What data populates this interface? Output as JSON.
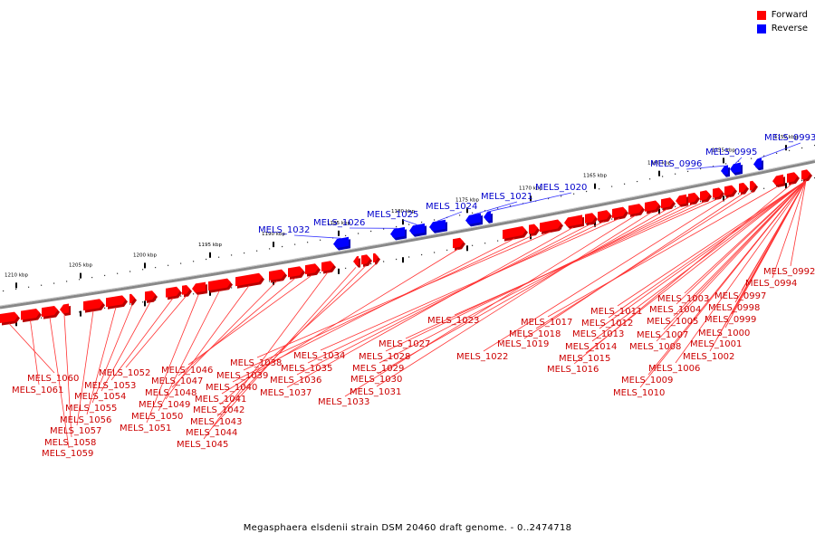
{
  "legend": {
    "items": [
      {
        "label": "Forward",
        "color": "#ff0000"
      },
      {
        "label": "Reverse",
        "color": "#0000ff"
      }
    ]
  },
  "caption": "Megasphaera elsdenii strain DSM 20460 draft genome. - 0..2474718",
  "ruler": {
    "ticks": [
      "1210 kbp",
      "1205 kbp",
      "1200 kbp",
      "1195 kbp",
      "1190 kbp",
      "1185 kbp",
      "1180 kbp",
      "1175 kbp",
      "1170 kbp",
      "1165 kbp",
      "1160 kbp",
      "1155 kbp",
      "1150 kbp"
    ]
  },
  "colors": {
    "forward": "#ff0000",
    "reverse": "#0000ff",
    "backbone": "#888888"
  },
  "reverse_genes": [
    "MELS_1032",
    "MELS_1026",
    "MELS_1025",
    "MELS_1024",
    "MELS_1021",
    "MELS_1020",
    "MELS_0996",
    "MELS_0995",
    "MELS_0993"
  ],
  "forward_genes": [
    "MELS_1060",
    "MELS_1061",
    "MELS_1059",
    "MELS_1058",
    "MELS_1057",
    "MELS_1056",
    "MELS_1055",
    "MELS_1054",
    "MELS_1053",
    "MELS_1052",
    "MELS_1051",
    "MELS_1050",
    "MELS_1049",
    "MELS_1048",
    "MELS_1047",
    "MELS_1046",
    "MELS_1045",
    "MELS_1044",
    "MELS_1043",
    "MELS_1042",
    "MELS_1041",
    "MELS_1040",
    "MELS_1039",
    "MELS_1038",
    "MELS_1037",
    "MELS_1036",
    "MELS_1035",
    "MELS_1034",
    "MELS_1033",
    "MELS_1031",
    "MELS_1030",
    "MELS_1029",
    "MELS_1028",
    "MELS_1027",
    "MELS_1023",
    "MELS_1022",
    "MELS_1019",
    "MELS_1018",
    "MELS_1017",
    "MELS_1016",
    "MELS_1015",
    "MELS_1014",
    "MELS_1013",
    "MELS_1012",
    "MELS_1011",
    "MELS_1010",
    "MELS_1009",
    "MELS_1008",
    "MELS_1007",
    "MELS_1006",
    "MELS_1005",
    "MELS_1004",
    "MELS_1003",
    "MELS_1002",
    "MELS_1001",
    "MELS_1000",
    "MELS_0999",
    "MELS_0998",
    "MELS_0997",
    "MELS_0994",
    "MELS_0992"
  ]
}
